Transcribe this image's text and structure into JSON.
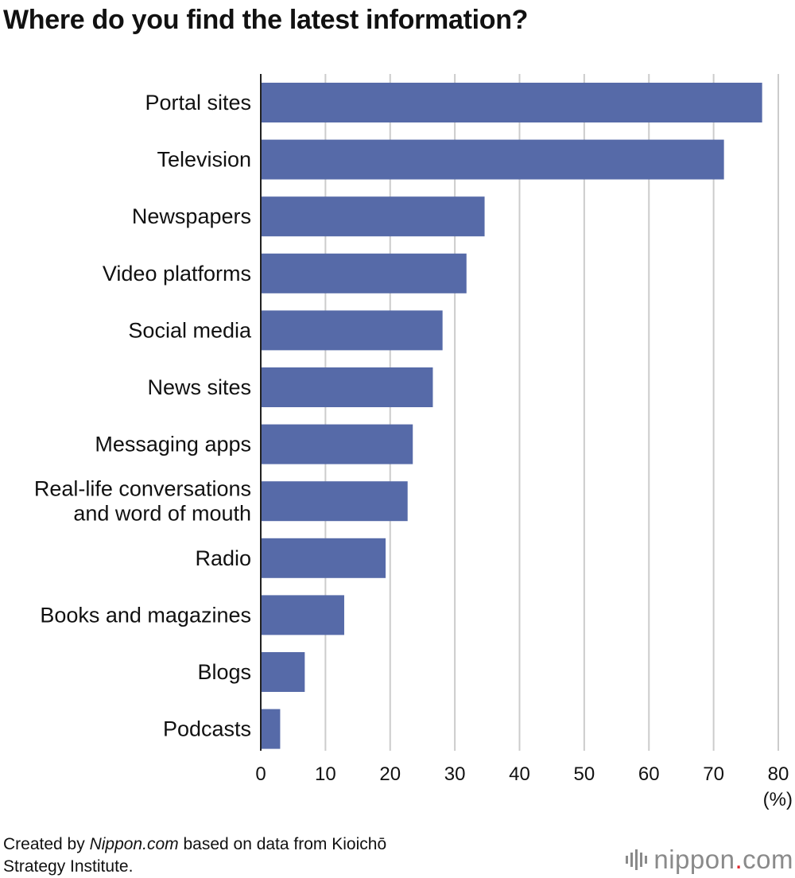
{
  "title": "Where do you find the latest information?",
  "chart_data": {
    "type": "bar",
    "orientation": "horizontal",
    "title": "Where do you find the latest information?",
    "categories": [
      "Portal sites",
      "Television",
      "Newspapers",
      "Video platforms",
      "Social media",
      "News sites",
      "Messaging apps",
      "Real-life conversations and word of mouth",
      "Radio",
      "Books and magazines",
      "Blogs",
      "Podcasts"
    ],
    "category_lines": [
      [
        "Portal sites"
      ],
      [
        "Television"
      ],
      [
        "Newspapers"
      ],
      [
        "Video platforms"
      ],
      [
        "Social media"
      ],
      [
        "News sites"
      ],
      [
        "Messaging apps"
      ],
      [
        "Real-life conversations",
        "and word of mouth"
      ],
      [
        "Radio"
      ],
      [
        "Books and magazines"
      ],
      [
        "Blogs"
      ],
      [
        "Podcasts"
      ]
    ],
    "values": [
      77.5,
      71.6,
      34.6,
      31.8,
      28.1,
      26.6,
      23.5,
      22.7,
      19.3,
      12.9,
      6.8,
      3.0
    ],
    "xlim": [
      0,
      80
    ],
    "xticks": [
      0,
      10,
      20,
      30,
      40,
      50,
      60,
      70,
      80
    ],
    "xlabel": "(%)",
    "ylabel": "",
    "grid": true,
    "bar_color": "#566aa8",
    "grid_color": "#cccccc"
  },
  "footer": {
    "prefix": "Created by ",
    "source_name": "Nippon.com",
    "suffix_line1": " based on data from Kioichō",
    "line2": "Strategy Institute."
  },
  "brand": {
    "name": "nippon",
    "dot": ".",
    "tld": "com",
    "dot_color": "#e0282e"
  }
}
